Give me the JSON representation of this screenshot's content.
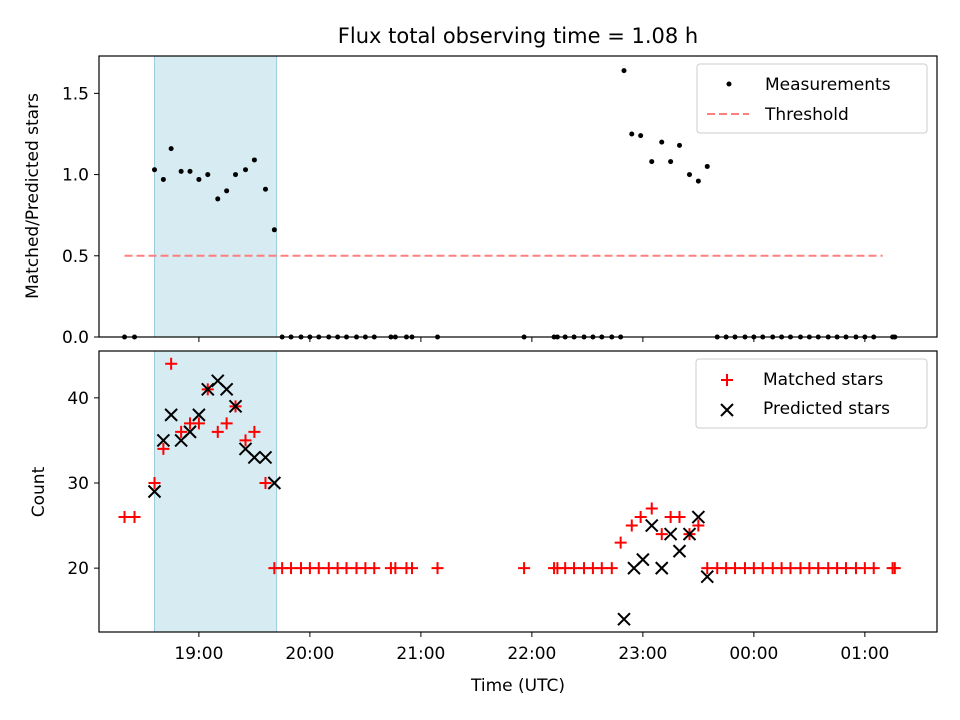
{
  "chart_data": [
    {
      "type": "scatter",
      "title": "Flux total observing time = 1.08 h",
      "xlabel": "",
      "ylabel": "Matched/Predicted stars",
      "xlim": [
        18.1,
        25.65
      ],
      "ylim": [
        0,
        1.73
      ],
      "yticks": [
        0.0,
        0.5,
        1.0,
        1.5
      ],
      "ytick_labels": [
        "0.0",
        "0.5",
        "1.0",
        "1.5"
      ],
      "shaded_interval": [
        18.6,
        19.7
      ],
      "legend": {
        "position": "top-right",
        "entries": [
          "Measurements",
          "Threshold"
        ]
      },
      "threshold": {
        "name": "Threshold",
        "value": 0.5,
        "x_range": [
          18.33,
          25.16
        ],
        "color": "#ff7f7f"
      },
      "series": [
        {
          "name": "Measurements",
          "marker": "dot",
          "color": "#000000",
          "points": [
            [
              18.33,
              0
            ],
            [
              18.42,
              0
            ],
            [
              18.6,
              1.03
            ],
            [
              18.68,
              0.97
            ],
            [
              18.75,
              1.16
            ],
            [
              18.84,
              1.02
            ],
            [
              18.92,
              1.02
            ],
            [
              19.0,
              0.97
            ],
            [
              19.08,
              1.0
            ],
            [
              19.17,
              0.85
            ],
            [
              19.25,
              0.9
            ],
            [
              19.33,
              1.0
            ],
            [
              19.42,
              1.03
            ],
            [
              19.5,
              1.09
            ],
            [
              19.6,
              0.91
            ],
            [
              19.68,
              0.66
            ],
            [
              19.75,
              0
            ],
            [
              19.83,
              0
            ],
            [
              19.92,
              0
            ],
            [
              20.0,
              0
            ],
            [
              20.08,
              0
            ],
            [
              20.17,
              0
            ],
            [
              20.25,
              0
            ],
            [
              20.33,
              0
            ],
            [
              20.42,
              0
            ],
            [
              20.5,
              0
            ],
            [
              20.58,
              0
            ],
            [
              20.73,
              0
            ],
            [
              20.77,
              0
            ],
            [
              20.87,
              0
            ],
            [
              20.92,
              0
            ],
            [
              21.15,
              0
            ],
            [
              21.93,
              0
            ],
            [
              22.2,
              0
            ],
            [
              22.23,
              0
            ],
            [
              22.3,
              0
            ],
            [
              22.38,
              0
            ],
            [
              22.47,
              0
            ],
            [
              22.55,
              0
            ],
            [
              22.63,
              0
            ],
            [
              22.72,
              0
            ],
            [
              22.8,
              0
            ],
            [
              22.83,
              1.64
            ],
            [
              22.9,
              1.25
            ],
            [
              22.98,
              1.24
            ],
            [
              23.08,
              1.08
            ],
            [
              23.17,
              1.2
            ],
            [
              23.25,
              1.08
            ],
            [
              23.33,
              1.18
            ],
            [
              23.42,
              1.0
            ],
            [
              23.5,
              0.96
            ],
            [
              23.58,
              1.05
            ],
            [
              23.67,
              0
            ],
            [
              23.75,
              0
            ],
            [
              23.83,
              0
            ],
            [
              23.92,
              0
            ],
            [
              24.0,
              0
            ],
            [
              24.08,
              0
            ],
            [
              24.17,
              0
            ],
            [
              24.25,
              0
            ],
            [
              24.33,
              0
            ],
            [
              24.42,
              0
            ],
            [
              24.5,
              0
            ],
            [
              24.58,
              0
            ],
            [
              24.67,
              0
            ],
            [
              24.75,
              0
            ],
            [
              24.83,
              0
            ],
            [
              24.92,
              0
            ],
            [
              25.0,
              0
            ],
            [
              25.08,
              0
            ],
            [
              25.25,
              0
            ],
            [
              25.27,
              0
            ]
          ]
        }
      ]
    },
    {
      "type": "scatter",
      "title": "",
      "xlabel": "Time (UTC)",
      "ylabel": "Count",
      "xlim": [
        18.1,
        25.65
      ],
      "ylim": [
        12.5,
        45.5
      ],
      "yticks": [
        20,
        30,
        40
      ],
      "ytick_labels": [
        "20",
        "30",
        "40"
      ],
      "xticks": [
        19,
        20,
        21,
        22,
        23,
        24,
        25
      ],
      "xtick_labels": [
        "19:00",
        "20:00",
        "21:00",
        "22:00",
        "23:00",
        "00:00",
        "01:00"
      ],
      "shaded_interval": [
        18.6,
        19.7
      ],
      "legend": {
        "position": "top-right",
        "entries": [
          "Matched stars",
          "Predicted stars"
        ]
      },
      "series": [
        {
          "name": "Matched stars",
          "marker": "plus",
          "color": "#ff0000",
          "points": [
            [
              18.33,
              26
            ],
            [
              18.42,
              26
            ],
            [
              18.6,
              30
            ],
            [
              18.68,
              34
            ],
            [
              18.75,
              44
            ],
            [
              18.84,
              36
            ],
            [
              18.92,
              37
            ],
            [
              19.0,
              37
            ],
            [
              19.08,
              41
            ],
            [
              19.17,
              36
            ],
            [
              19.25,
              37
            ],
            [
              19.33,
              39
            ],
            [
              19.42,
              35
            ],
            [
              19.5,
              36
            ],
            [
              19.6,
              30
            ],
            [
              19.68,
              20
            ],
            [
              19.75,
              20
            ],
            [
              19.83,
              20
            ],
            [
              19.92,
              20
            ],
            [
              20.0,
              20
            ],
            [
              20.08,
              20
            ],
            [
              20.17,
              20
            ],
            [
              20.25,
              20
            ],
            [
              20.33,
              20
            ],
            [
              20.42,
              20
            ],
            [
              20.5,
              20
            ],
            [
              20.58,
              20
            ],
            [
              20.73,
              20
            ],
            [
              20.77,
              20
            ],
            [
              20.87,
              20
            ],
            [
              20.92,
              20
            ],
            [
              21.15,
              20
            ],
            [
              21.93,
              20
            ],
            [
              22.2,
              20
            ],
            [
              22.23,
              20
            ],
            [
              22.3,
              20
            ],
            [
              22.38,
              20
            ],
            [
              22.47,
              20
            ],
            [
              22.55,
              20
            ],
            [
              22.63,
              20
            ],
            [
              22.72,
              20
            ],
            [
              22.8,
              23
            ],
            [
              22.9,
              25
            ],
            [
              22.98,
              26
            ],
            [
              23.08,
              27
            ],
            [
              23.17,
              24
            ],
            [
              23.25,
              26
            ],
            [
              23.33,
              26
            ],
            [
              23.42,
              24
            ],
            [
              23.5,
              25
            ],
            [
              23.58,
              20
            ],
            [
              23.67,
              20
            ],
            [
              23.75,
              20
            ],
            [
              23.83,
              20
            ],
            [
              23.92,
              20
            ],
            [
              24.0,
              20
            ],
            [
              24.08,
              20
            ],
            [
              24.17,
              20
            ],
            [
              24.25,
              20
            ],
            [
              24.33,
              20
            ],
            [
              24.42,
              20
            ],
            [
              24.5,
              20
            ],
            [
              24.58,
              20
            ],
            [
              24.67,
              20
            ],
            [
              24.75,
              20
            ],
            [
              24.83,
              20
            ],
            [
              24.92,
              20
            ],
            [
              25.0,
              20
            ],
            [
              25.08,
              20
            ],
            [
              25.25,
              20
            ],
            [
              25.27,
              20
            ]
          ]
        },
        {
          "name": "Predicted stars",
          "marker": "x",
          "color": "#000000",
          "points": [
            [
              18.6,
              29
            ],
            [
              18.68,
              35
            ],
            [
              18.75,
              38
            ],
            [
              18.84,
              35
            ],
            [
              18.92,
              36
            ],
            [
              19.0,
              38
            ],
            [
              19.08,
              41
            ],
            [
              19.17,
              42
            ],
            [
              19.25,
              41
            ],
            [
              19.33,
              39
            ],
            [
              19.42,
              34
            ],
            [
              19.5,
              33
            ],
            [
              19.6,
              33
            ],
            [
              19.68,
              30
            ],
            [
              22.83,
              14
            ],
            [
              22.92,
              20
            ],
            [
              23.0,
              21
            ],
            [
              23.08,
              25
            ],
            [
              23.17,
              20
            ],
            [
              23.25,
              24
            ],
            [
              23.33,
              22
            ],
            [
              23.42,
              24
            ],
            [
              23.5,
              26
            ],
            [
              23.58,
              19
            ]
          ]
        }
      ]
    }
  ]
}
